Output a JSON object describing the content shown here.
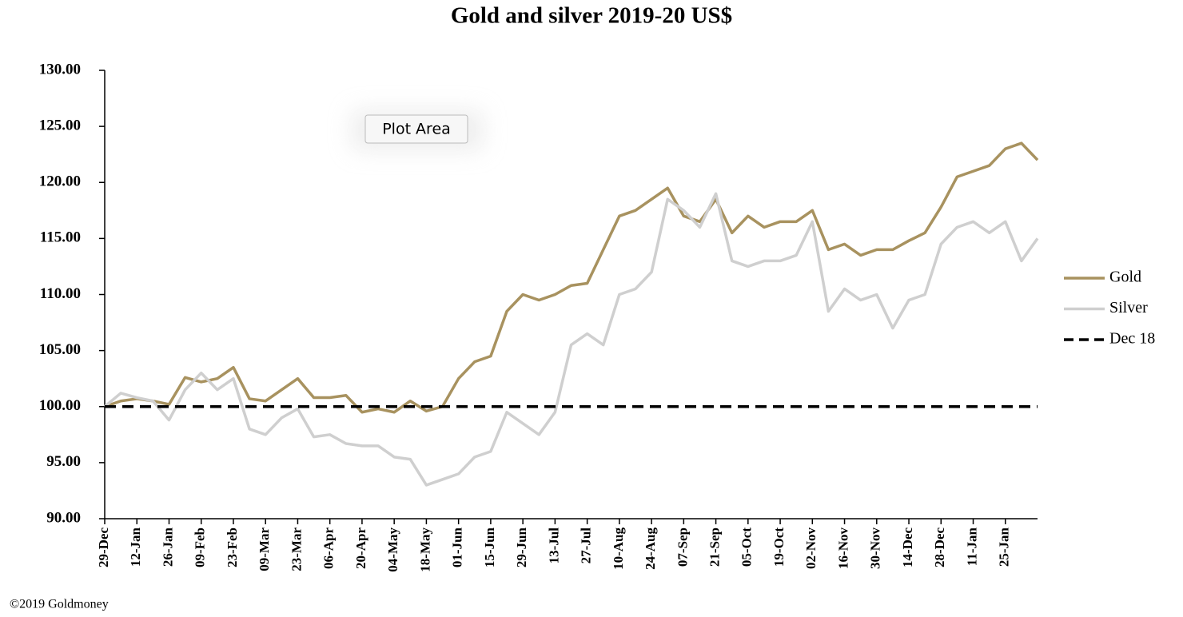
{
  "chart_data": {
    "type": "line",
    "title": "Gold and silver 2019-20  US$",
    "categories": [
      "29-Dec",
      null,
      "12-Jan",
      null,
      "26-Jan",
      null,
      "09-Feb",
      null,
      "23-Feb",
      null,
      "09-Mar",
      null,
      "23-Mar",
      null,
      "06-Apr",
      null,
      "20-Apr",
      null,
      "04-May",
      null,
      "18-May",
      null,
      "01-Jun",
      null,
      "15-Jun",
      null,
      "29-Jun",
      null,
      "13-Jul",
      null,
      "27-Jul",
      null,
      "10-Aug",
      null,
      "24-Aug",
      null,
      "07-Sep",
      null,
      "21-Sep",
      null,
      "05-Oct",
      null,
      "19-Oct",
      null,
      "02-Nov",
      null,
      "16-Nov",
      null,
      "30-Nov",
      null,
      "14-Dec",
      null,
      "28-Dec",
      null,
      "11-Jan",
      null,
      "25-Jan",
      null,
      null
    ],
    "series": [
      {
        "name": "Gold",
        "color": "#a8925f",
        "values": [
          100,
          100.5,
          100.7,
          100.5,
          100.2,
          102.6,
          102.2,
          102.5,
          103.5,
          100.7,
          100.5,
          101.5,
          102.5,
          100.8,
          100.8,
          101.0,
          99.5,
          99.8,
          99.5,
          100.5,
          99.6,
          100.0,
          102.5,
          104.0,
          104.5,
          108.5,
          110.0,
          109.5,
          110.0,
          110.8,
          111.0,
          114.0,
          117.0,
          117.5,
          118.5,
          119.5,
          117.0,
          116.5,
          118.5,
          115.5,
          117.0,
          116.0,
          116.5,
          116.5,
          117.5,
          114.0,
          114.5,
          113.5,
          114.0,
          114.0,
          114.8,
          115.5,
          117.8,
          120.5,
          121.0,
          121.5,
          123.0,
          123.5,
          122.0
        ]
      },
      {
        "name": "Silver",
        "color": "#cfcfcf",
        "values": [
          100,
          101.2,
          100.8,
          100.5,
          98.8,
          101.5,
          103.0,
          101.5,
          102.5,
          98.0,
          97.5,
          99.0,
          99.8,
          97.3,
          97.5,
          96.7,
          96.5,
          96.5,
          95.5,
          95.3,
          93.0,
          93.5,
          94.0,
          95.5,
          96.0,
          99.5,
          98.5,
          97.5,
          99.5,
          105.5,
          106.5,
          105.5,
          110.0,
          110.5,
          112.0,
          118.5,
          117.5,
          116.0,
          119.0,
          113.0,
          112.5,
          113.0,
          113.0,
          113.5,
          116.5,
          108.5,
          110.5,
          109.5,
          110.0,
          107.0,
          109.5,
          110.0,
          114.5,
          116.0,
          116.5,
          115.5,
          116.5,
          113.0,
          115.0
        ]
      }
    ],
    "reference": {
      "name": "Dec 18",
      "value": 100,
      "color": "#000000"
    },
    "ylim": [
      90,
      130
    ],
    "yticks": [
      {
        "value": 90,
        "label": "90.00"
      },
      {
        "value": 95,
        "label": "95.00"
      },
      {
        "value": 100,
        "label": "100.00"
      },
      {
        "value": 105,
        "label": "105.00"
      },
      {
        "value": 110,
        "label": "110.00"
      },
      {
        "value": 115,
        "label": "115.00"
      },
      {
        "value": 120,
        "label": "120.00"
      },
      {
        "value": 125,
        "label": "125.00"
      },
      {
        "value": 130,
        "label": "130.00"
      }
    ],
    "tooltip": "Plot Area",
    "source": "©2019 Goldmoney"
  }
}
